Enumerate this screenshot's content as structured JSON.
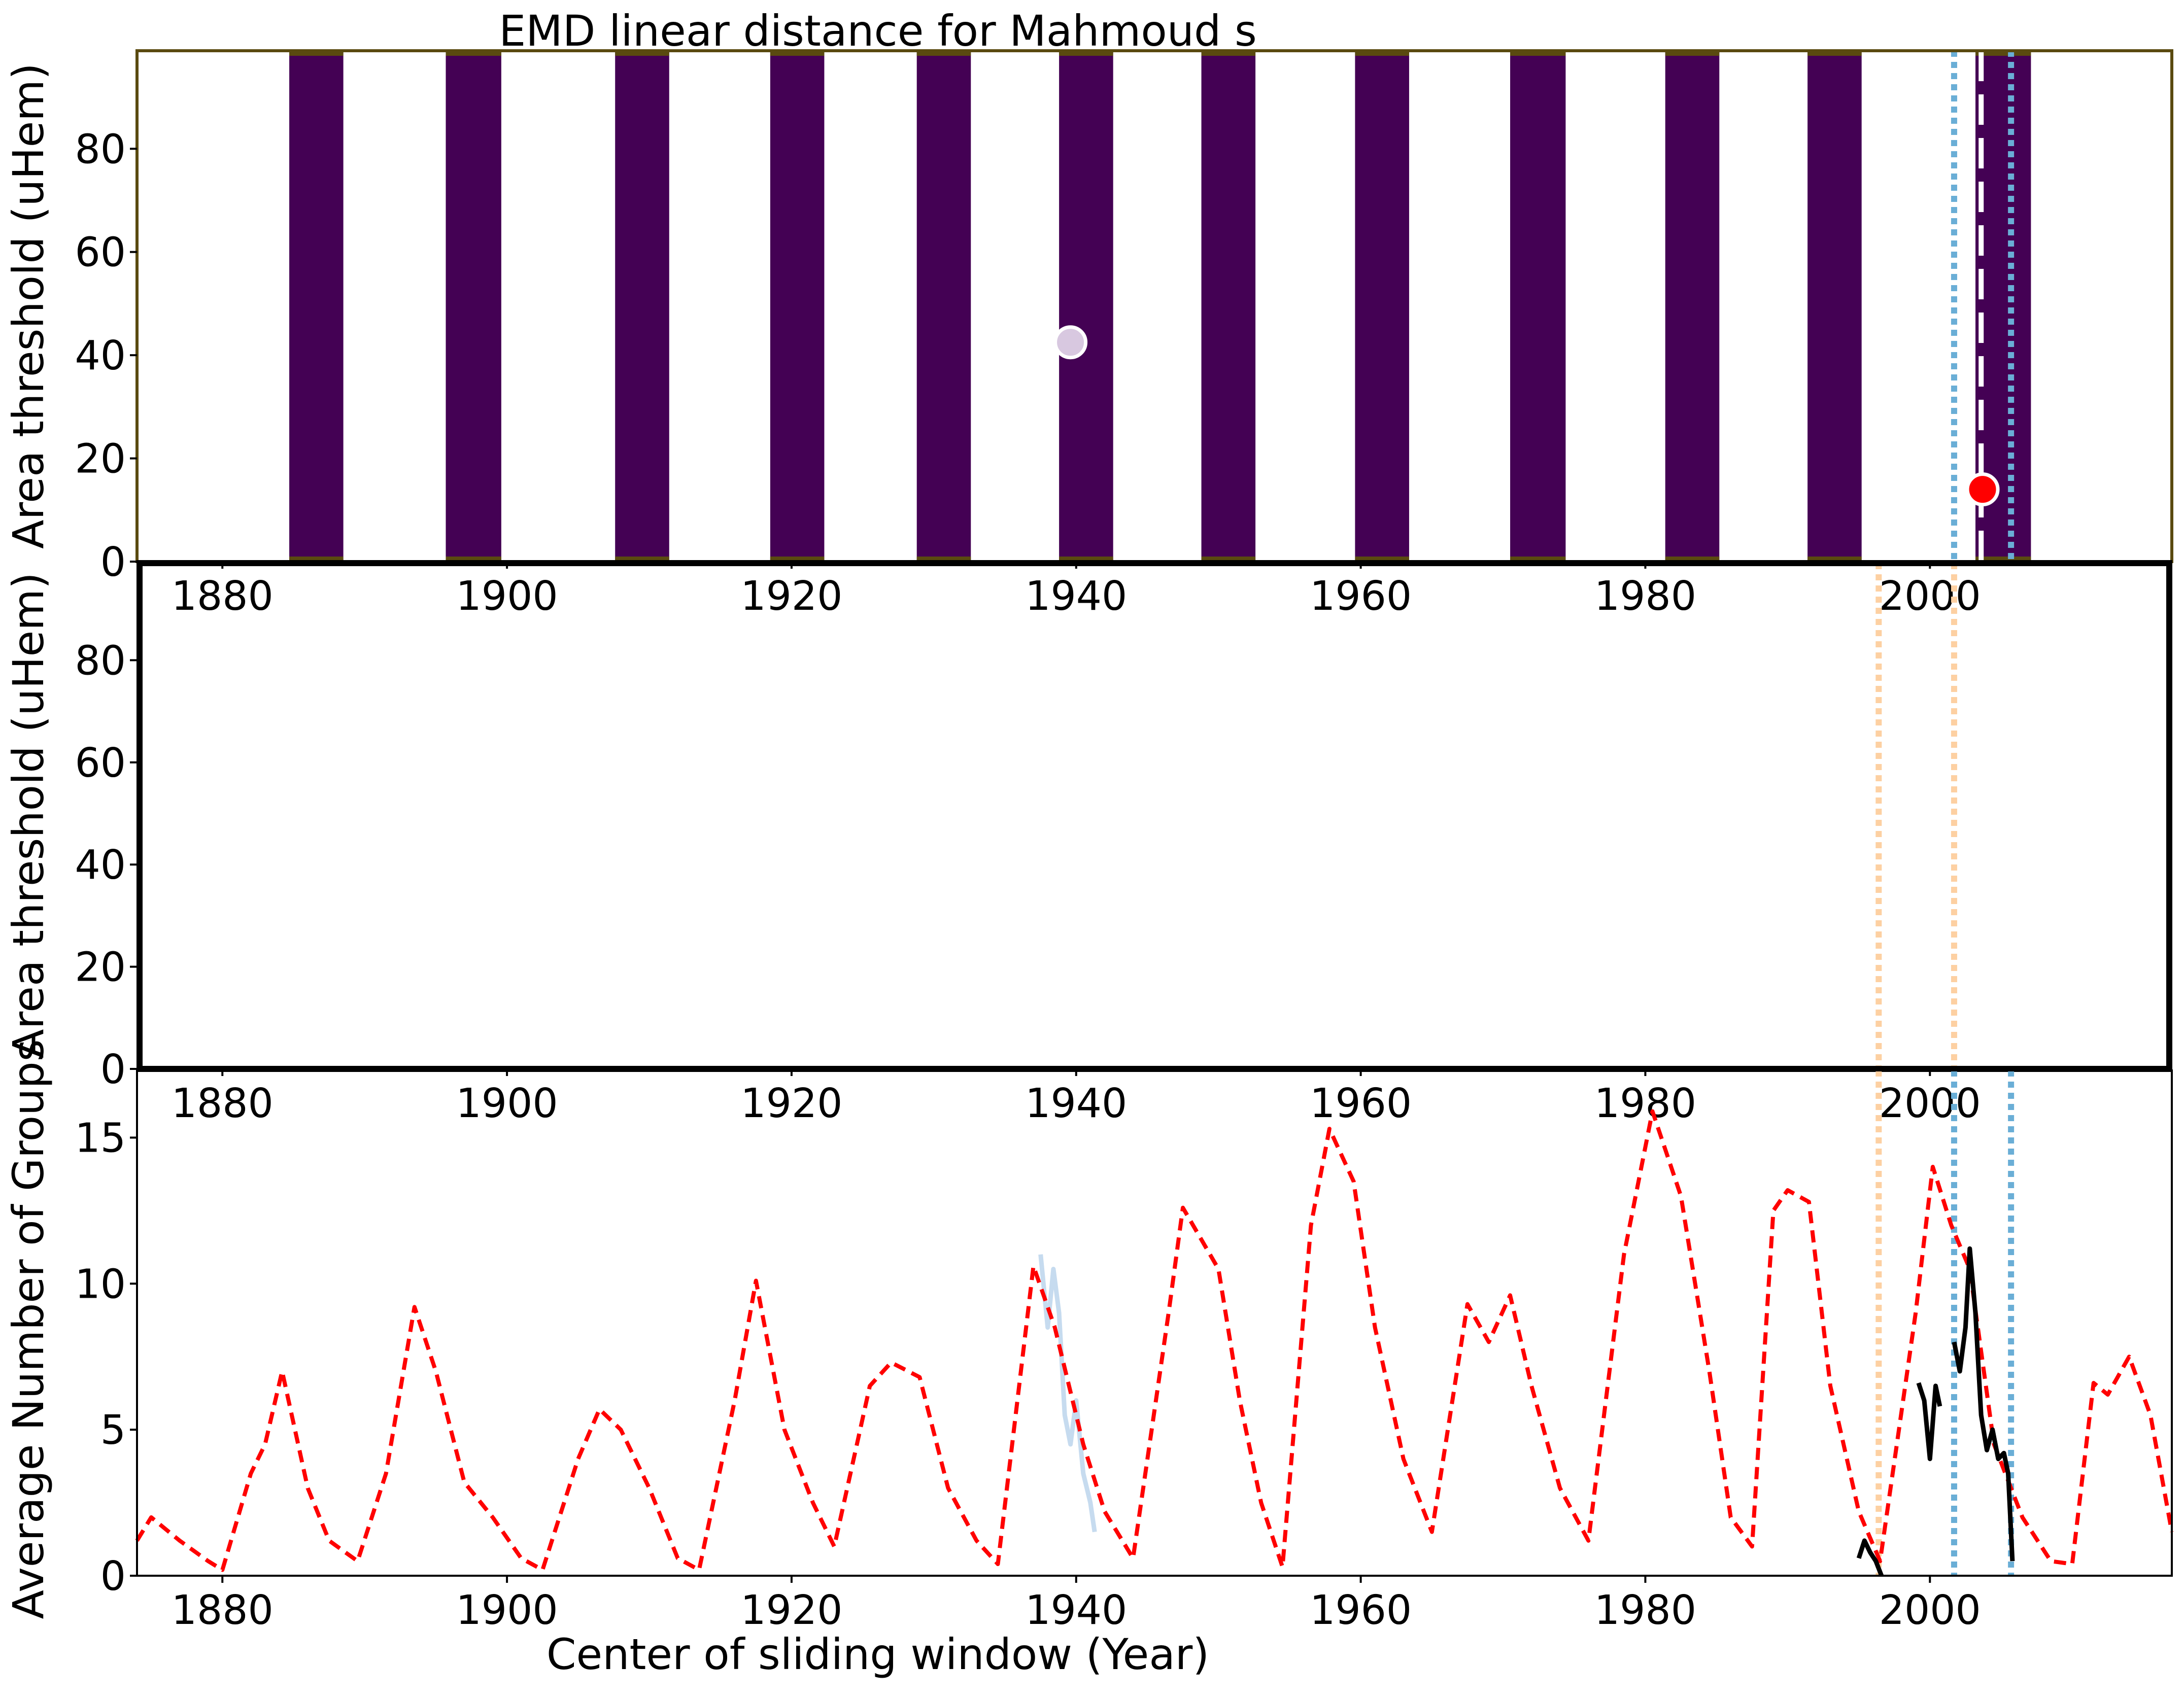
{
  "chart_data": [
    {
      "id": "top",
      "type": "heatmap",
      "title": "EMD linear distance for Mahmoud s",
      "ylabel": "Area threshold (uHem)",
      "xlabel": "",
      "xlim": [
        1874,
        2017
      ],
      "ylim": [
        0,
        99
      ],
      "xticks": [
        1880,
        1900,
        1920,
        1940,
        1960,
        1980,
        2000
      ],
      "yticks": [
        0,
        20,
        40,
        60,
        80
      ],
      "colors": {
        "band": "#440154",
        "band_edge": "#5a4a10",
        "frame": "#5a4a10",
        "vline_blue": "#6aaed6",
        "point_light": "#d8c8e0",
        "point_best": "#ff0000"
      },
      "bands": [
        {
          "x0": 1884.7,
          "x1": 1888.5
        },
        {
          "x0": 1895.7,
          "x1": 1899.6
        },
        {
          "x0": 1907.6,
          "x1": 1911.4
        },
        {
          "x0": 1918.5,
          "x1": 1922.3
        },
        {
          "x0": 1928.8,
          "x1": 1932.6
        },
        {
          "x0": 1938.8,
          "x1": 1942.6
        },
        {
          "x0": 1948.8,
          "x1": 1952.6
        },
        {
          "x0": 1959.6,
          "x1": 1963.4
        },
        {
          "x0": 1970.5,
          "x1": 1974.4
        },
        {
          "x0": 1981.4,
          "x1": 1985.2
        },
        {
          "x0": 1991.4,
          "x1": 1995.2
        },
        {
          "x0": 2003.2,
          "x1": 2007.1
        }
      ],
      "vlines_dotted": [
        2001.7,
        2005.7
      ],
      "vline_dashed": 2003.6,
      "points": [
        {
          "x": 1939.6,
          "y": 42.5,
          "kind": "light"
        },
        {
          "x": 2003.7,
          "y": 14.0,
          "kind": "best"
        }
      ]
    },
    {
      "id": "middle",
      "type": "heatmap",
      "title": "",
      "ylabel": "Area threshold (uHem)",
      "xlabel": "",
      "xlim": [
        1874,
        2017
      ],
      "ylim": [
        0,
        99
      ],
      "xticks": [
        1880,
        1900,
        1920,
        1940,
        1960,
        1980,
        2000
      ],
      "yticks": [
        0,
        20,
        40,
        60,
        80
      ],
      "colors": {
        "vline_orange": "#fdd0a2",
        "frame": "#000000"
      },
      "vlines_dotted": [
        1996.4,
        2001.7
      ]
    },
    {
      "id": "bottom",
      "type": "line",
      "title": "",
      "ylabel": "Average Number of Groups",
      "xlabel": "Center of sliding window (Year)",
      "xlim": [
        1874,
        2017
      ],
      "ylim": [
        0,
        17.3
      ],
      "xticks": [
        1880,
        1900,
        1920,
        1940,
        1960,
        1980,
        2000
      ],
      "yticks": [
        0,
        5,
        10,
        15
      ],
      "colors": {
        "reference": "#ff0000",
        "observer": "#000000",
        "observer_light": "#c6dbef",
        "vline_orange": "#fdd0a2",
        "vline_blue": "#6aaed6"
      },
      "vlines_orange": [
        1996.4
      ],
      "vlines_blue": [
        2001.7,
        2005.7
      ],
      "reference_peaks": [
        [
          1874.0,
          1.2
        ],
        [
          1875.0,
          2.0
        ],
        [
          1877.0,
          1.2
        ],
        [
          1879.0,
          0.5
        ],
        [
          1880.0,
          0.2
        ],
        [
          1882.0,
          3.5
        ],
        [
          1883.0,
          4.5
        ],
        [
          1884.2,
          7.0
        ],
        [
          1886.0,
          3.0
        ],
        [
          1887.5,
          1.2
        ],
        [
          1889.5,
          0.5
        ],
        [
          1891.5,
          3.5
        ],
        [
          1893.5,
          9.2
        ],
        [
          1895.0,
          7.0
        ],
        [
          1897.0,
          3.2
        ],
        [
          1899.0,
          2.0
        ],
        [
          1901.0,
          0.6
        ],
        [
          1902.5,
          0.2
        ],
        [
          1905.0,
          4.0
        ],
        [
          1906.5,
          5.7
        ],
        [
          1908.0,
          5.0
        ],
        [
          1910.0,
          3.0
        ],
        [
          1912.0,
          0.6
        ],
        [
          1913.5,
          0.2
        ],
        [
          1916.0,
          6.0
        ],
        [
          1917.5,
          10.1
        ],
        [
          1919.5,
          5.0
        ],
        [
          1921.5,
          2.5
        ],
        [
          1923.0,
          1.0
        ],
        [
          1925.5,
          6.5
        ],
        [
          1927.0,
          7.3
        ],
        [
          1929.0,
          6.8
        ],
        [
          1931.0,
          3.0
        ],
        [
          1933.0,
          1.2
        ],
        [
          1934.5,
          0.4
        ],
        [
          1937.0,
          10.6
        ],
        [
          1938.5,
          8.5
        ],
        [
          1940.5,
          4.5
        ],
        [
          1942.0,
          2.2
        ],
        [
          1944.0,
          0.6
        ],
        [
          1946.5,
          9.0
        ],
        [
          1947.5,
          12.6
        ],
        [
          1950.0,
          10.5
        ],
        [
          1951.5,
          6.0
        ],
        [
          1953.0,
          2.5
        ],
        [
          1954.5,
          0.3
        ],
        [
          1956.5,
          12.0
        ],
        [
          1957.8,
          15.3
        ],
        [
          1959.5,
          13.5
        ],
        [
          1961.0,
          8.5
        ],
        [
          1963.0,
          4.0
        ],
        [
          1965.0,
          1.5
        ],
        [
          1967.5,
          9.3
        ],
        [
          1969.0,
          8.0
        ],
        [
          1970.5,
          9.6
        ],
        [
          1972.0,
          6.5
        ],
        [
          1974.0,
          3.0
        ],
        [
          1976.0,
          1.2
        ],
        [
          1978.5,
          11.0
        ],
        [
          1980.5,
          15.9
        ],
        [
          1982.5,
          13.0
        ],
        [
          1984.5,
          7.0
        ],
        [
          1986.0,
          2.0
        ],
        [
          1987.5,
          1.0
        ],
        [
          1989.0,
          12.5
        ],
        [
          1990.0,
          13.2
        ],
        [
          1991.5,
          12.8
        ],
        [
          1993.0,
          6.5
        ],
        [
          1995.0,
          2.2
        ],
        [
          1996.5,
          0.5
        ],
        [
          1999.0,
          9.0
        ],
        [
          2000.2,
          14.0
        ],
        [
          2001.5,
          12.0
        ],
        [
          2002.8,
          10.5
        ],
        [
          2004.5,
          4.5
        ],
        [
          2006.5,
          2.0
        ],
        [
          2008.5,
          0.5
        ],
        [
          2010.0,
          0.4
        ],
        [
          2011.5,
          6.6
        ],
        [
          2012.5,
          6.2
        ],
        [
          2014.0,
          7.5
        ],
        [
          2015.5,
          5.5
        ],
        [
          2017.0,
          1.5
        ]
      ],
      "observer_segments": [
        [
          [
            1995.0,
            0.6
          ],
          [
            1995.4,
            1.2
          ],
          [
            1995.8,
            0.8
          ],
          [
            1996.2,
            0.5
          ],
          [
            1996.6,
            0.0
          ]
        ],
        [
          [
            1999.2,
            6.6
          ],
          [
            1999.6,
            6.0
          ],
          [
            2000.0,
            4.0
          ],
          [
            2000.4,
            6.5
          ],
          [
            2000.7,
            5.8
          ]
        ],
        [
          [
            2001.7,
            8.0
          ],
          [
            2002.1,
            7.0
          ],
          [
            2002.5,
            8.5
          ],
          [
            2002.8,
            11.2
          ],
          [
            2003.2,
            9.0
          ],
          [
            2003.6,
            5.5
          ],
          [
            2004.0,
            4.3
          ],
          [
            2004.4,
            5.0
          ],
          [
            2004.8,
            4.0
          ],
          [
            2005.2,
            4.2
          ],
          [
            2005.5,
            3.5
          ],
          [
            2005.8,
            0.5
          ]
        ]
      ],
      "observer_light_segment": [
        [
          1937.5,
          11.0
        ],
        [
          1938.0,
          8.5
        ],
        [
          1938.4,
          10.5
        ],
        [
          1938.8,
          9.0
        ],
        [
          1939.2,
          5.5
        ],
        [
          1939.6,
          4.5
        ],
        [
          1940.0,
          6.0
        ],
        [
          1940.5,
          3.5
        ],
        [
          1941.0,
          2.5
        ],
        [
          1941.3,
          1.5
        ]
      ]
    }
  ]
}
